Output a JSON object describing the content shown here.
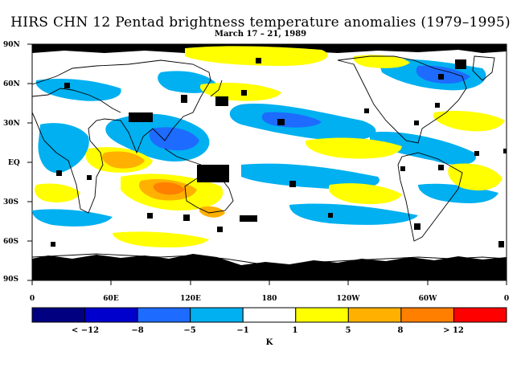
{
  "title": "HIRS CHN 12 Pentad brightness temperature anomalies (1979–1995)",
  "subtitle": "March 17 – 21, 1989",
  "lat_labels": [
    "90N",
    "60N",
    "30N",
    "EQ",
    "30S",
    "60S",
    "90S"
  ],
  "lon_labels": [
    "0",
    "60E",
    "120E",
    "180",
    "120W",
    "60W",
    "0"
  ],
  "colorbar": {
    "units": "K",
    "labels": [
      "< −12",
      "−8",
      "−5",
      "−1",
      "1",
      "5",
      "8",
      "> 12"
    ],
    "colors": [
      "#000080",
      "#0000cd",
      "#1e6bff",
      "#00b0f0",
      "#ffffff",
      "#ffff00",
      "#ffb000",
      "#ff7f00",
      "#ff0000"
    ]
  }
}
